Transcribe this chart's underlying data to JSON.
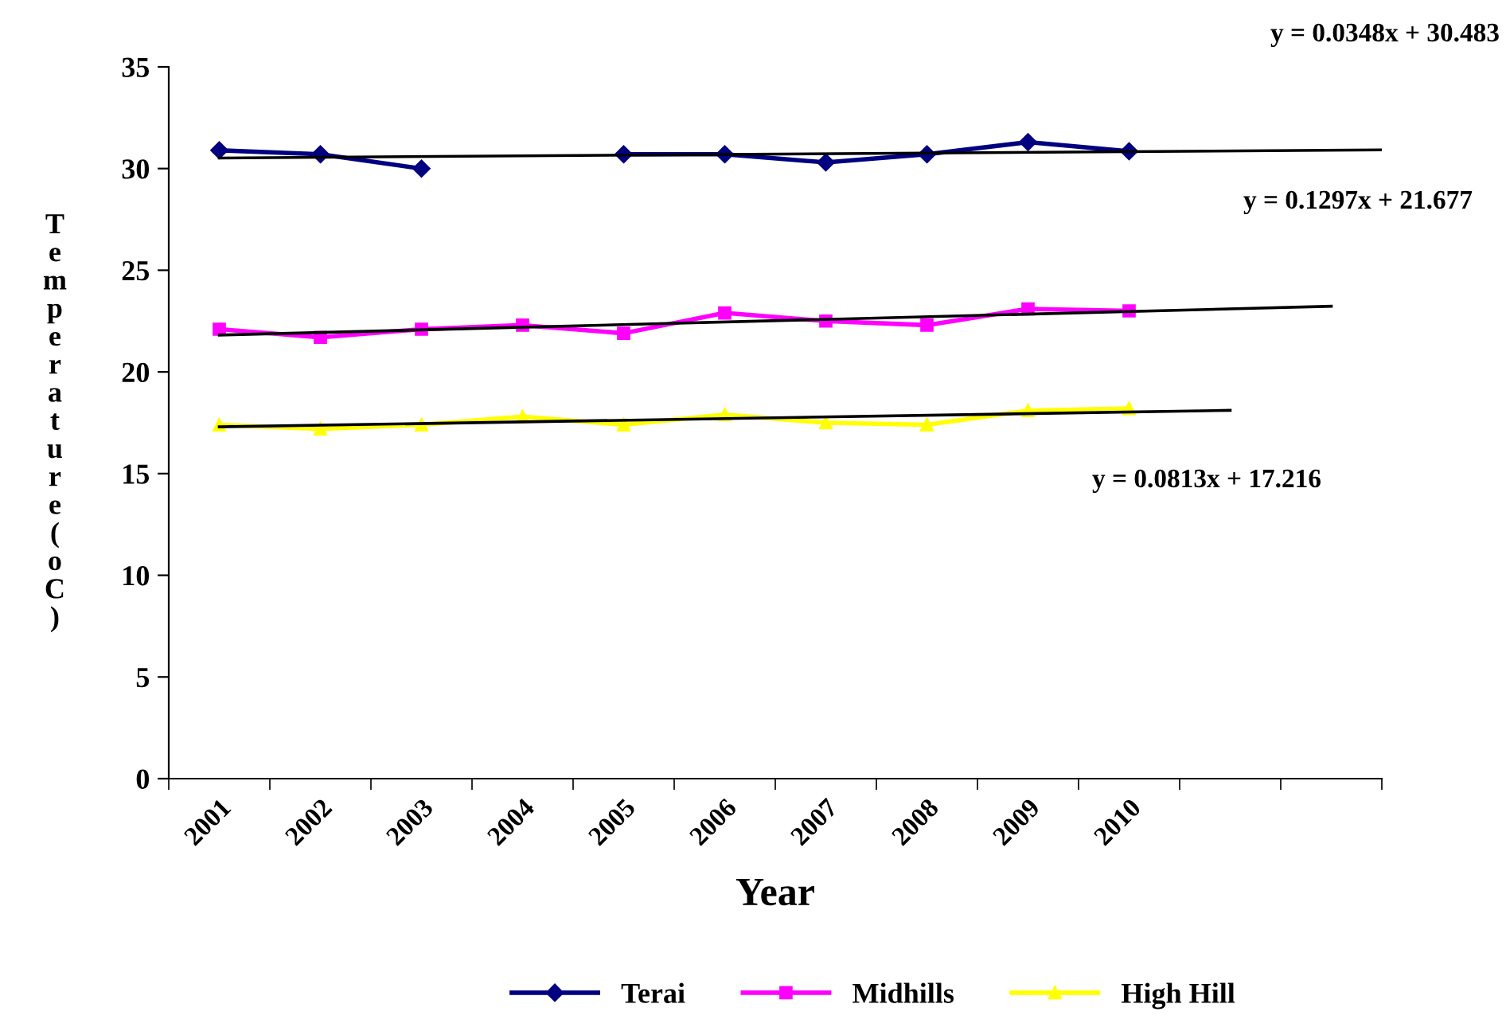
{
  "chart_data": {
    "type": "line",
    "xlabel": "Year",
    "ylabel": "Temperature (oC)",
    "x": [
      2001,
      2002,
      2003,
      2004,
      2005,
      2006,
      2007,
      2008,
      2009,
      2010
    ],
    "xlim": [
      2000.5,
      2012.5
    ],
    "xticks": [
      {
        "value": 2000.5,
        "label": null
      },
      {
        "value": 2001,
        "label": "2001"
      },
      {
        "value": 2001.5,
        "label": null
      },
      {
        "value": 2002,
        "label": "2002"
      },
      {
        "value": 2002.5,
        "label": null
      },
      {
        "value": 2003,
        "label": "2003"
      },
      {
        "value": 2003.5,
        "label": null
      },
      {
        "value": 2004,
        "label": "2004"
      },
      {
        "value": 2004.5,
        "label": null
      },
      {
        "value": 2005,
        "label": "2005"
      },
      {
        "value": 2005.5,
        "label": null
      },
      {
        "value": 2006,
        "label": "2006"
      },
      {
        "value": 2006.5,
        "label": null
      },
      {
        "value": 2007,
        "label": "2007"
      },
      {
        "value": 2007.5,
        "label": null
      },
      {
        "value": 2008,
        "label": "2008"
      },
      {
        "value": 2008.5,
        "label": null
      },
      {
        "value": 2009,
        "label": "2009"
      },
      {
        "value": 2009.5,
        "label": null
      },
      {
        "value": 2010,
        "label": "2010"
      },
      {
        "value": 2010.5,
        "label": null
      },
      {
        "value": 2011.5,
        "label": null
      },
      {
        "value": 2012.5,
        "label": null
      }
    ],
    "ylim": [
      0,
      35
    ],
    "yticks": [
      0,
      5,
      10,
      15,
      20,
      25,
      30,
      35
    ],
    "grid": false,
    "legend": "bottom",
    "series": [
      {
        "name": "Terai",
        "color": "#000080",
        "marker": "diamond",
        "values": [
          30.9,
          30.7,
          30.0,
          null,
          30.7,
          30.7,
          30.3,
          30.7,
          31.3,
          30.85
        ]
      },
      {
        "name": "Midhills",
        "color": "#ff00ff",
        "marker": "square",
        "values": [
          22.1,
          21.7,
          22.1,
          22.3,
          21.9,
          22.9,
          22.5,
          22.3,
          23.1,
          23.0
        ]
      },
      {
        "name": "High Hill",
        "color": "#ffff00",
        "marker": "triangle",
        "values": [
          17.4,
          17.2,
          17.4,
          17.8,
          17.4,
          17.9,
          17.5,
          17.4,
          18.1,
          18.2
        ]
      },
      {
        "type": "line",
        "color": "#000000",
        "marker": "none",
        "x": [
          2001,
          2012.5
        ],
        "values": [
          30.52,
          30.92
        ]
      },
      {
        "type": "line",
        "color": "#000000",
        "marker": "none",
        "x": [
          2001,
          2012
        ],
        "values": [
          21.81,
          23.23
        ]
      },
      {
        "type": "line",
        "color": "#000000",
        "marker": "none",
        "x": [
          2001,
          2011
        ],
        "values": [
          17.3,
          18.11
        ]
      }
    ],
    "annotations": [
      "y = 0.0348x + 30.483",
      "y = 0.1297x + 21.677",
      "y = 0.0813x + 17.216"
    ]
  }
}
